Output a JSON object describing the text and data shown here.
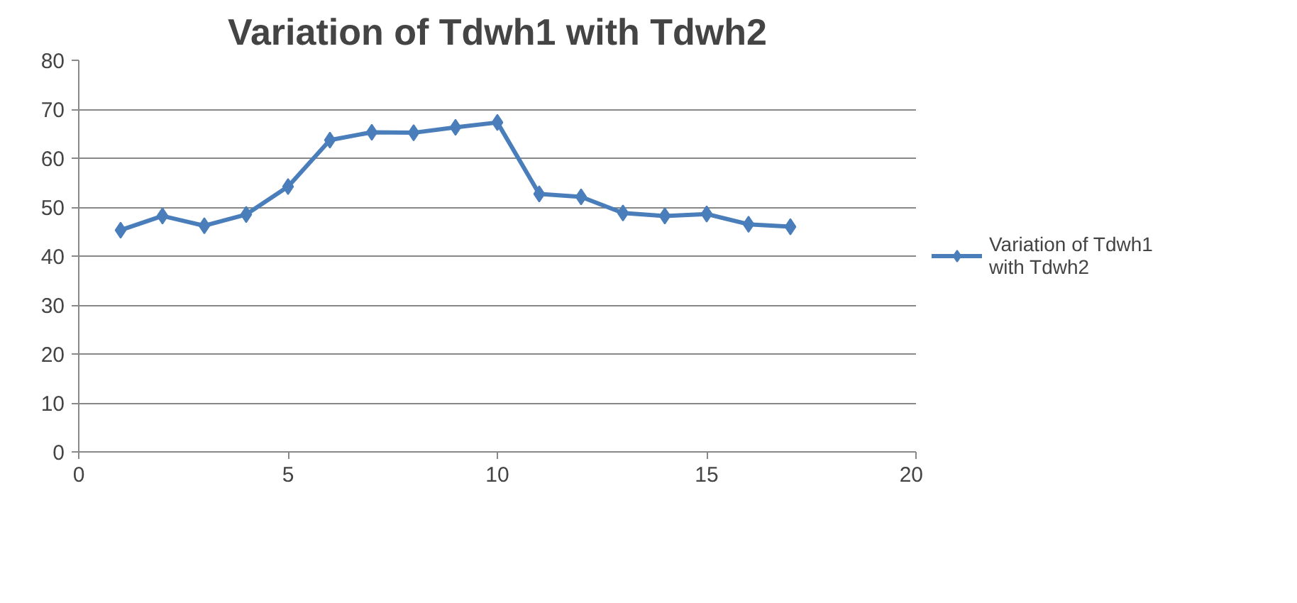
{
  "chart_data": {
    "type": "line",
    "title": "Variation of Tdwh1 with Tdwh2",
    "x": [
      1,
      2,
      3,
      4,
      5,
      6,
      7,
      8,
      9,
      10,
      11,
      12,
      13,
      14,
      15,
      16,
      17
    ],
    "series": [
      {
        "name": "Variation of Tdwh1 with Tdwh2",
        "color": "#4a7ebb",
        "values": [
          45.3,
          48.2,
          46.2,
          48.5,
          54.2,
          63.7,
          65.3,
          65.2,
          66.3,
          67.3,
          52.7,
          52.1,
          48.8,
          48.2,
          48.6,
          46.5,
          46.0
        ]
      }
    ],
    "xlim": [
      0,
      20
    ],
    "xticks": [
      0,
      5,
      10,
      15,
      20
    ],
    "ylim": [
      0,
      80
    ],
    "yticks": [
      0,
      10,
      20,
      30,
      40,
      50,
      60,
      70,
      80
    ],
    "grid": "y",
    "legend": "right",
    "marker": "diamond",
    "line_style": "solid"
  }
}
